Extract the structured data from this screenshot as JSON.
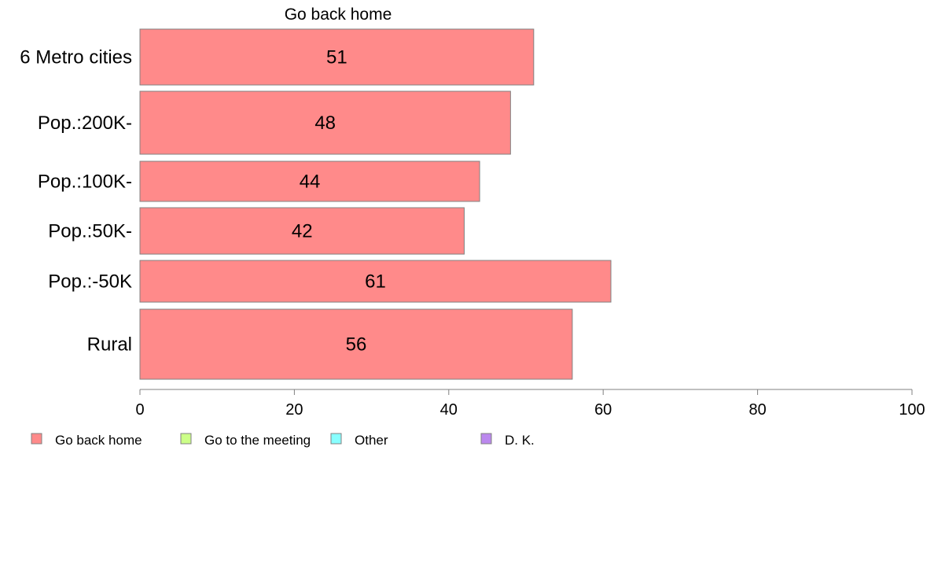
{
  "chart_data": {
    "type": "bar",
    "orientation": "horizontal",
    "title": "Go back home",
    "categories": [
      "6 Metro cities",
      "Pop.:200K-",
      "Pop.:100K-",
      "Pop.:50K-",
      "Pop.:-50K",
      "Rural"
    ],
    "series": [
      {
        "name": "Go back home",
        "color": "#ff8a8a",
        "values": [
          51,
          48,
          44,
          42,
          61,
          56
        ]
      }
    ],
    "xlim": [
      0,
      100
    ],
    "xticks": [
      0,
      20,
      40,
      60,
      80,
      100
    ],
    "grid": false,
    "legend_position": "bottom-left",
    "legend": [
      {
        "name": "Go back home",
        "color": "#ff8a8a"
      },
      {
        "name": "Go to the meeting",
        "color": "#ccff88"
      },
      {
        "name": "Other",
        "color": "#88ffff"
      },
      {
        "name": "D. K.",
        "color": "#bb88ee"
      }
    ]
  }
}
